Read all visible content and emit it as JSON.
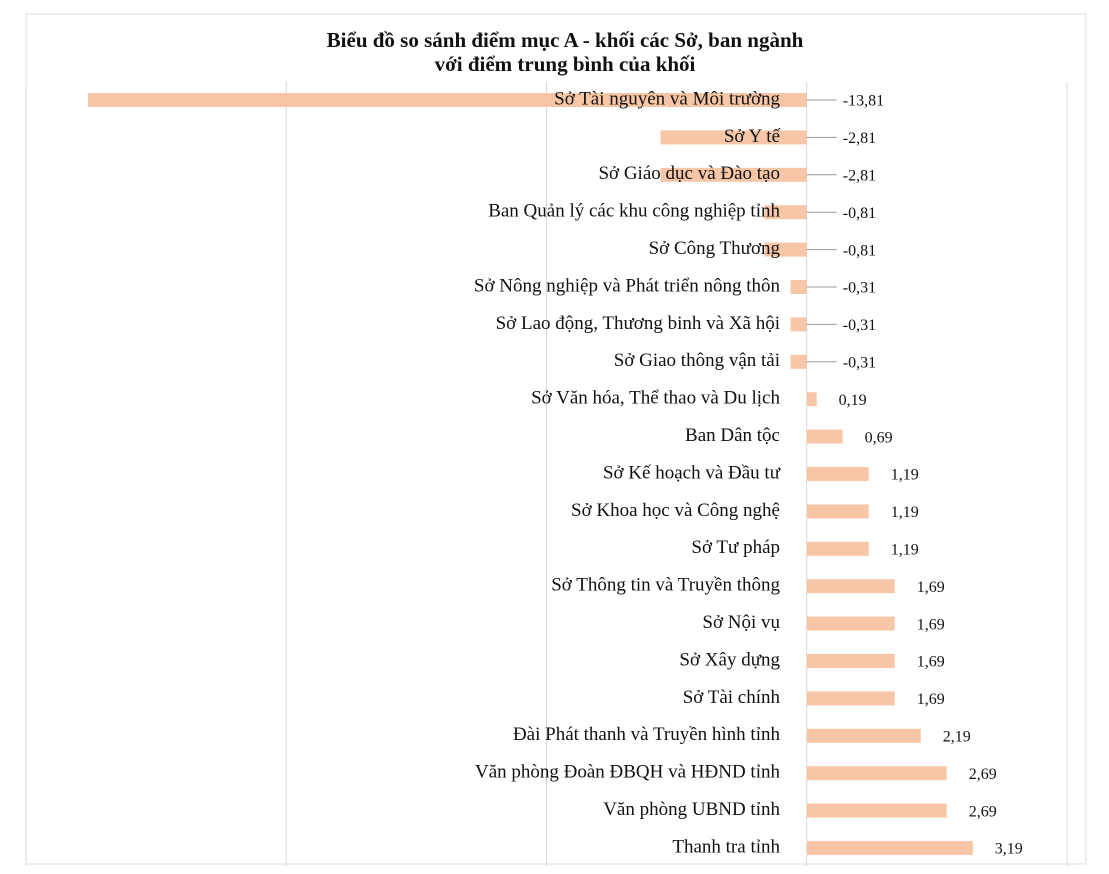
{
  "chart_data": {
    "type": "bar",
    "orientation": "horizontal",
    "title": [
      "Biểu đồ so sánh điểm mục A - khối các Sở, ban ngành",
      "với điểm trung bình của khối"
    ],
    "categories": [
      "Sở Tài nguyên và Môi trường",
      "Sở Y tế",
      "Sở Giáo dục và Đào tạo",
      "Ban Quản lý các khu công nghiệp tỉnh",
      "Sở Công Thương",
      "Sở Nông nghiệp và Phát triển nông thôn",
      "Sở Lao động, Thương binh và Xã hội",
      "Sở Giao thông vận tải",
      "Sở Văn hóa, Thể thao và Du lịch",
      "Ban Dân tộc",
      "Sở Kế hoạch và Đầu tư",
      "Sở Khoa học và Công nghệ",
      "Sở Tư pháp",
      "Sở Thông tin và Truyền thông",
      "Sở Nội vụ",
      "Sở Xây dựng",
      "Sở Tài chính",
      "Đài Phát thanh và Truyền hình tỉnh",
      "Văn phòng Đoàn ĐBQH và HĐND tỉnh",
      "Văn phòng UBND tỉnh",
      "Thanh tra tỉnh"
    ],
    "values": [
      -13.81,
      -2.81,
      -2.81,
      -0.81,
      -0.81,
      -0.31,
      -0.31,
      -0.31,
      0.19,
      0.69,
      1.19,
      1.19,
      1.19,
      1.69,
      1.69,
      1.69,
      1.69,
      2.19,
      2.69,
      2.69,
      3.19
    ],
    "value_labels": [
      "-13,81",
      "-2,81",
      "-2,81",
      "-0,81",
      "-0,81",
      "-0,31",
      "-0,31",
      "-0,31",
      "0,19",
      "0,69",
      "1,19",
      "1,19",
      "1,19",
      "1,69",
      "1,69",
      "1,69",
      "1,69",
      "2,19",
      "2,69",
      "2,69",
      "3,19"
    ],
    "color": "#f6c6a6",
    "xlim": [
      -15,
      5
    ],
    "xticks": [
      -15,
      -10,
      -5,
      0,
      5
    ],
    "grid": true
  }
}
